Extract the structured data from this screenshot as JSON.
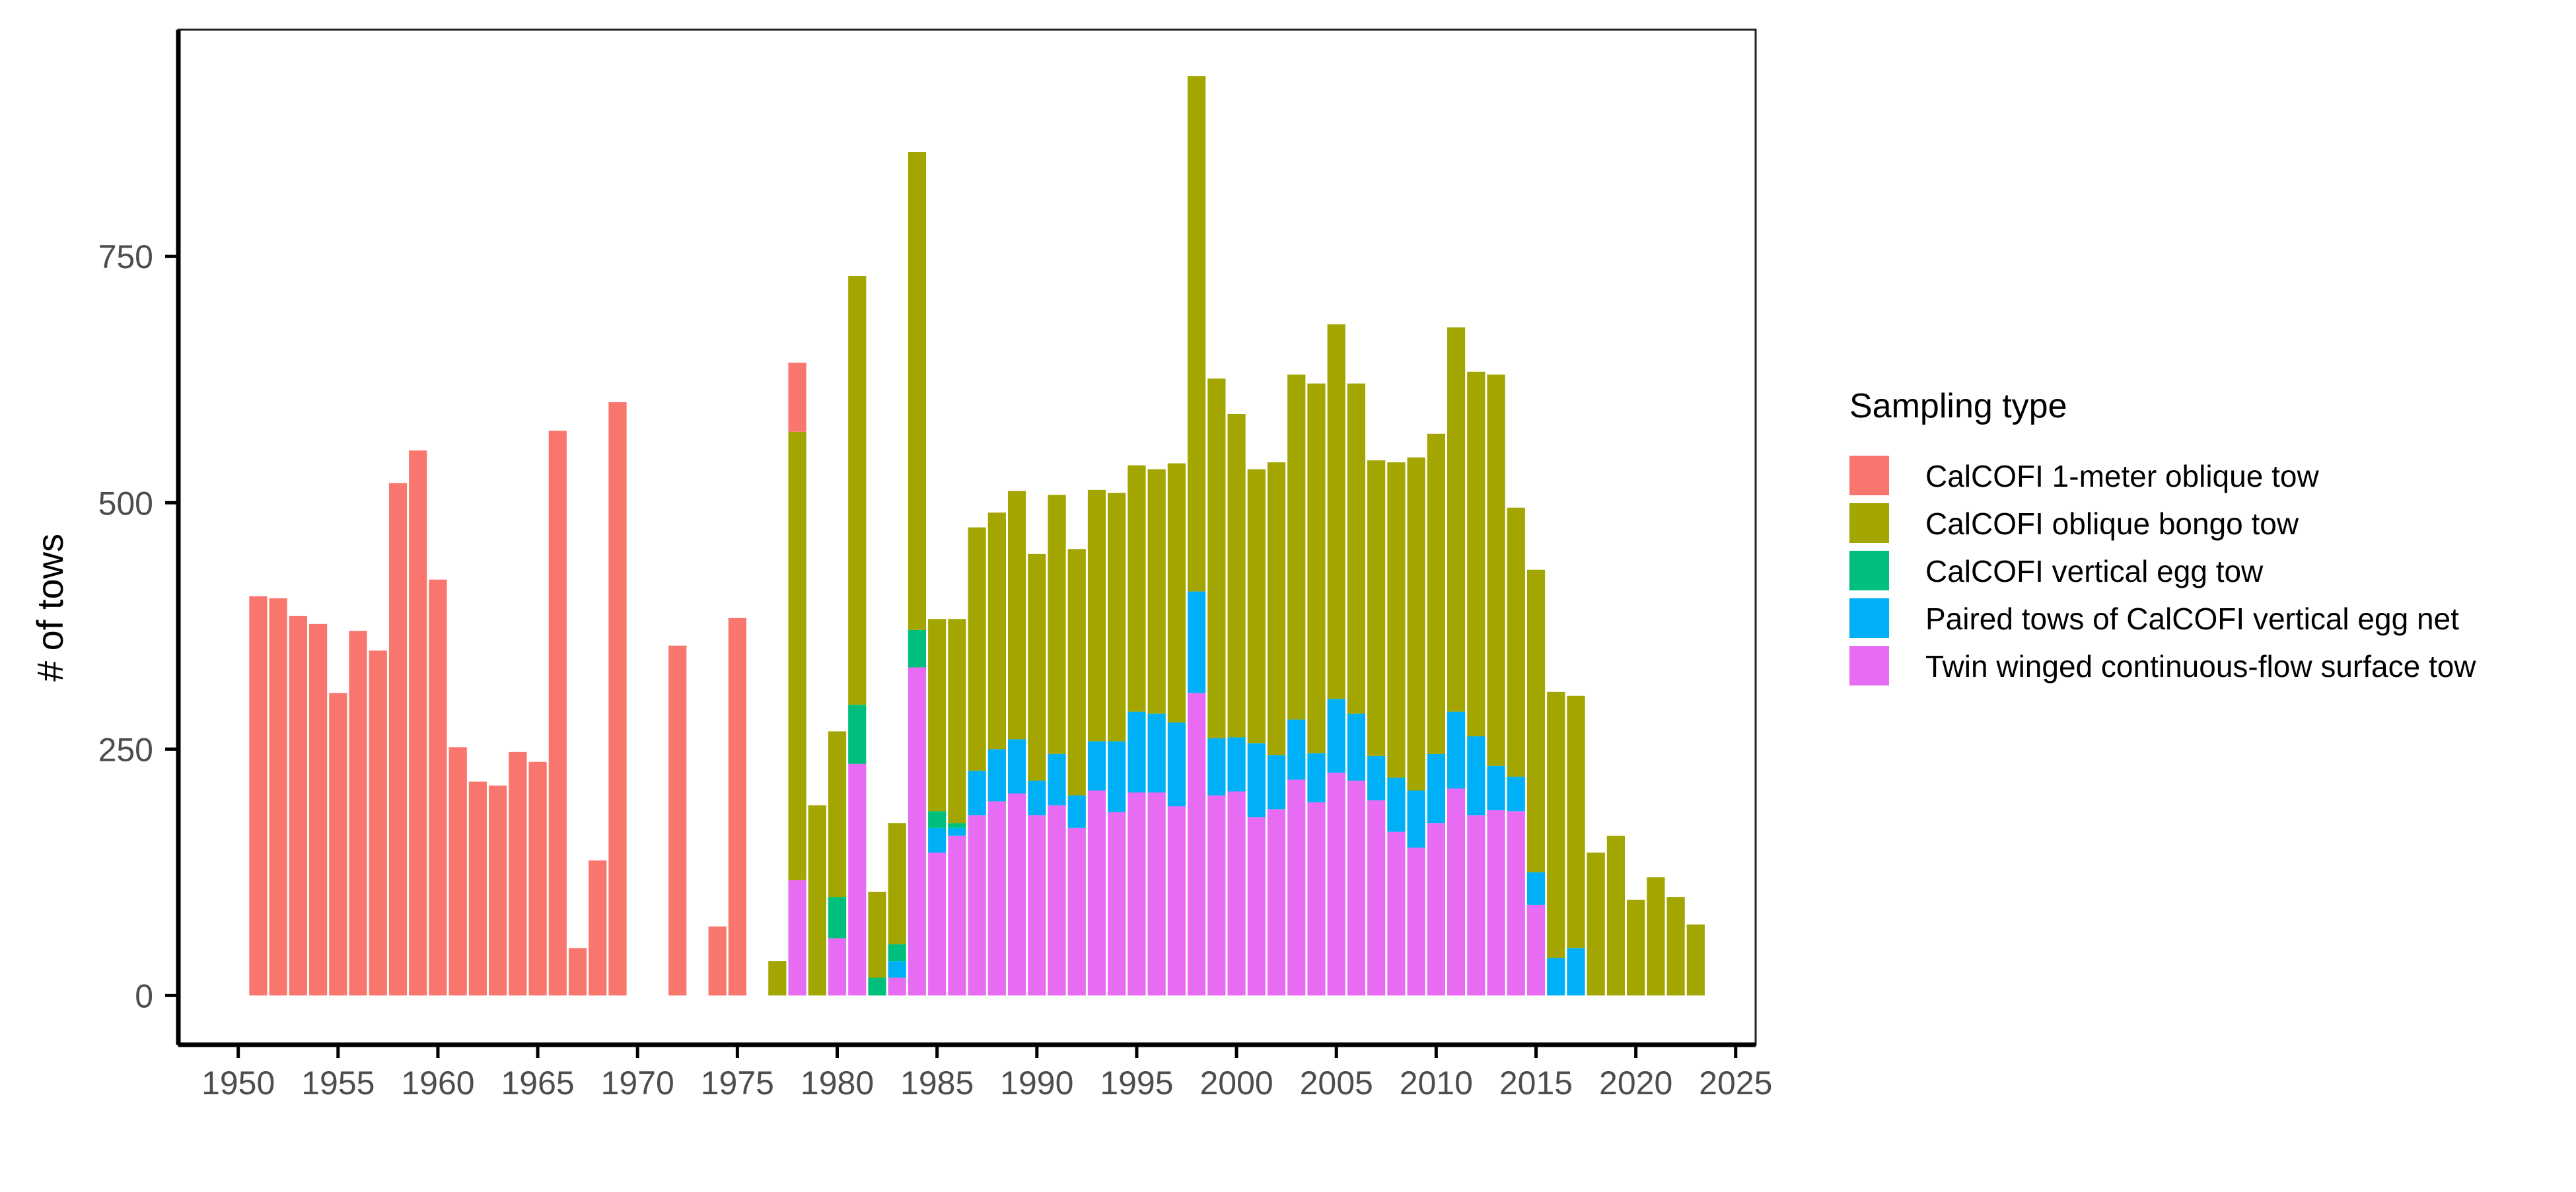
{
  "chart_data": {
    "type": "bar",
    "stacked": true,
    "ylabel": "# of tows",
    "xlabel": "",
    "xlim": [
      1947,
      2026
    ],
    "ylim": [
      -50,
      980
    ],
    "x_ticks": [
      1950,
      1955,
      1960,
      1965,
      1970,
      1975,
      1980,
      1985,
      1990,
      1995,
      2000,
      2005,
      2010,
      2015,
      2020,
      2025
    ],
    "y_ticks": [
      0,
      250,
      500,
      750
    ],
    "legend": {
      "title": "Sampling type",
      "position": "right"
    },
    "grid": false,
    "colors": {
      "CalCOFI 1-meter oblique tow": "#F8766D",
      "CalCOFI oblique bongo tow": "#A3A500",
      "CalCOFI vertical egg tow": "#00BF7D",
      "Paired tows of CalCOFI vertical egg net": "#00B0F6",
      "Twin winged continuous-flow surface tow": "#E76BF3"
    },
    "series_order_bottom_to_top": [
      "Twin winged continuous-flow surface tow",
      "Paired tows of CalCOFI vertical egg net",
      "CalCOFI vertical egg tow",
      "CalCOFI oblique bongo tow",
      "CalCOFI 1-meter oblique tow"
    ],
    "legend_order": [
      "CalCOFI 1-meter oblique tow",
      "CalCOFI oblique bongo tow",
      "CalCOFI vertical egg tow",
      "Paired tows of CalCOFI vertical egg net",
      "Twin winged continuous-flow surface tow"
    ],
    "years": [
      1951,
      1952,
      1953,
      1954,
      1955,
      1956,
      1957,
      1958,
      1959,
      1960,
      1961,
      1962,
      1963,
      1964,
      1965,
      1966,
      1967,
      1968,
      1969,
      1972,
      1974,
      1975,
      1977,
      1978,
      1979,
      1980,
      1981,
      1982,
      1983,
      1984,
      1985,
      1986,
      1987,
      1988,
      1989,
      1990,
      1991,
      1992,
      1993,
      1994,
      1995,
      1996,
      1997,
      1998,
      1999,
      2000,
      2001,
      2002,
      2003,
      2004,
      2005,
      2006,
      2007,
      2008,
      2009,
      2010,
      2011,
      2012,
      2013,
      2014,
      2015,
      2016,
      2017,
      2018,
      2019,
      2020,
      2021,
      2022,
      2023
    ],
    "series": [
      {
        "name": "Twin winged continuous-flow surface tow",
        "values": [
          0,
          0,
          0,
          0,
          0,
          0,
          0,
          0,
          0,
          0,
          0,
          0,
          0,
          0,
          0,
          0,
          0,
          0,
          0,
          0,
          0,
          0,
          0,
          117,
          0,
          58,
          235,
          0,
          18,
          333,
          145,
          162,
          183,
          197,
          205,
          183,
          193,
          170,
          208,
          186,
          206,
          206,
          192,
          307,
          203,
          207,
          181,
          189,
          219,
          196,
          226,
          218,
          198,
          166,
          150,
          175,
          210,
          183,
          188,
          187,
          92,
          0,
          0,
          0,
          0,
          0,
          0,
          0,
          0
        ]
      },
      {
        "name": "Paired tows of CalCOFI vertical egg net",
        "values": [
          0,
          0,
          0,
          0,
          0,
          0,
          0,
          0,
          0,
          0,
          0,
          0,
          0,
          0,
          0,
          0,
          0,
          0,
          0,
          0,
          0,
          0,
          0,
          0,
          0,
          0,
          0,
          0,
          17,
          0,
          25,
          8,
          45,
          53,
          55,
          35,
          52,
          33,
          50,
          72,
          82,
          80,
          85,
          103,
          58,
          55,
          75,
          55,
          61,
          50,
          75,
          68,
          45,
          55,
          58,
          70,
          78,
          80,
          45,
          35,
          33,
          38,
          48,
          0,
          0,
          0,
          0,
          0,
          0
        ]
      },
      {
        "name": "CalCOFI vertical egg tow",
        "values": [
          0,
          0,
          0,
          0,
          0,
          0,
          0,
          0,
          0,
          0,
          0,
          0,
          0,
          0,
          0,
          0,
          0,
          0,
          0,
          0,
          0,
          0,
          0,
          0,
          0,
          42,
          60,
          18,
          17,
          38,
          17,
          5,
          0,
          0,
          0,
          0,
          0,
          0,
          0,
          0,
          0,
          0,
          0,
          0,
          0,
          0,
          0,
          0,
          0,
          0,
          0,
          0,
          0,
          0,
          0,
          0,
          0,
          0,
          0,
          0,
          0,
          0,
          0,
          0,
          0,
          0,
          0,
          0,
          0
        ]
      },
      {
        "name": "CalCOFI oblique bongo tow",
        "values": [
          0,
          0,
          0,
          0,
          0,
          0,
          0,
          0,
          0,
          0,
          0,
          0,
          0,
          0,
          0,
          0,
          0,
          0,
          0,
          0,
          0,
          0,
          35,
          455,
          193,
          168,
          435,
          87,
          123,
          485,
          195,
          207,
          247,
          240,
          252,
          230,
          263,
          250,
          255,
          252,
          250,
          248,
          263,
          523,
          365,
          328,
          278,
          297,
          350,
          375,
          380,
          335,
          300,
          320,
          338,
          325,
          390,
          370,
          397,
          273,
          307,
          270,
          256,
          145,
          162,
          97,
          120,
          100,
          72
        ]
      },
      {
        "name": "CalCOFI 1-meter oblique tow",
        "values": [
          405,
          403,
          385,
          377,
          307,
          370,
          350,
          520,
          553,
          422,
          252,
          217,
          213,
          247,
          237,
          573,
          48,
          137,
          602,
          355,
          70,
          383,
          0,
          70,
          0,
          0,
          0,
          0,
          0,
          0,
          0,
          0,
          0,
          0,
          0,
          0,
          0,
          0,
          0,
          0,
          0,
          0,
          0,
          0,
          0,
          0,
          0,
          0,
          0,
          0,
          0,
          0,
          0,
          0,
          0,
          0,
          0,
          0,
          0,
          0,
          0,
          0,
          0,
          0,
          0,
          0,
          0,
          0,
          0
        ]
      }
    ]
  }
}
